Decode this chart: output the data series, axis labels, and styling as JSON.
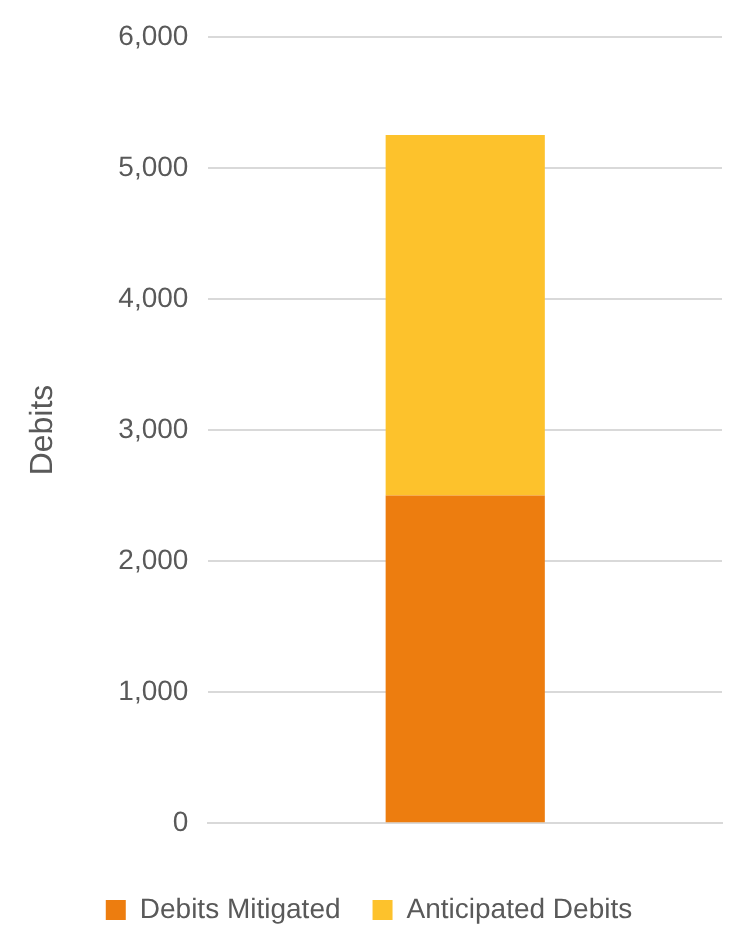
{
  "chart_data": {
    "type": "bar",
    "stacked": true,
    "ylabel": "Debits",
    "categories": [
      null
    ],
    "series": [
      {
        "name": "Debits Mitigated",
        "color": "#ed7d0f",
        "values": [
          2500
        ]
      },
      {
        "name": "Anticipated Debits",
        "color": "#fdc22c",
        "values": [
          2750
        ]
      }
    ],
    "ylim": [
      0,
      6000
    ],
    "yticks": [
      0,
      {
        "value": 1000,
        "label": "1,000"
      },
      {
        "value": 2000,
        "label": "2,000"
      },
      {
        "value": 3000,
        "label": "3,000"
      },
      {
        "value": 4000,
        "label": "4,000"
      },
      {
        "value": 5000,
        "label": "5,000"
      },
      {
        "value": 6000,
        "label": "6,000"
      }
    ],
    "grid": "y",
    "legend": "bottom"
  }
}
